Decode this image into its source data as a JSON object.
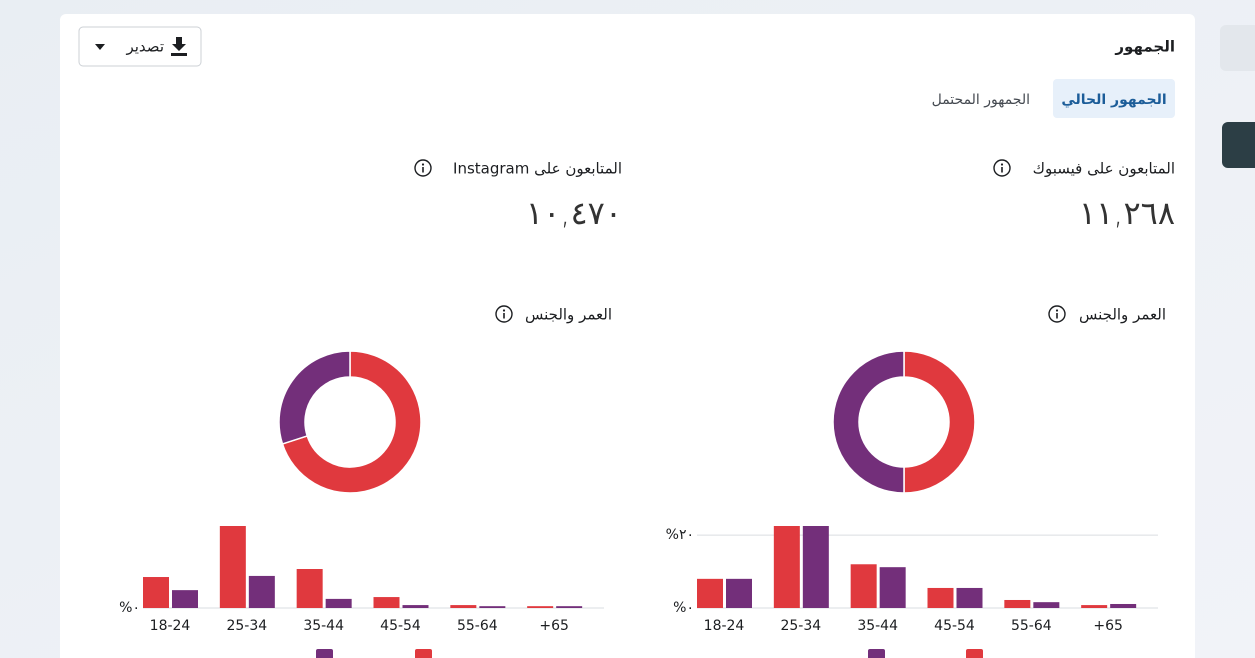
{
  "header": {
    "title": "الجمهور",
    "export_button": "تصدير"
  },
  "tabs": [
    "الجمهور الحالي",
    "الجمهور المحتمل"
  ],
  "panels": [
    {
      "label": "المتابعون على فيسبوك",
      "count": "١١,٢٦٨",
      "section_title": "العمر والجنس",
      "donut": {
        "type": "pie",
        "values": [
          50,
          50
        ],
        "colors": [
          "#e0393e",
          "#732f7a"
        ]
      },
      "bars": {
        "type": "bar",
        "categories": [
          "18-24",
          "25-34",
          "35-44",
          "45-54",
          "55-64",
          "+65"
        ],
        "series": [
          {
            "color": "#e0393e",
            "values": [
              8,
              22.5,
              12,
              5.5,
              2.2,
              0.8
            ]
          },
          {
            "color": "#732f7a",
            "values": [
              8,
              22.5,
              11.2,
              5.5,
              1.6,
              1.1
            ]
          }
        ],
        "ylim": [
          0,
          22.5
        ],
        "yticks": [
          {
            "value": 0,
            "label": "%٠"
          },
          {
            "value": 20,
            "label": "%٢٠"
          }
        ],
        "grid": true
      }
    },
    {
      "label": "المتابعون على Instagram",
      "count": "١٠,٤٧٠",
      "section_title": "العمر والجنس",
      "donut": {
        "type": "pie",
        "values": [
          70,
          30
        ],
        "colors": [
          "#e0393e",
          "#732f7a"
        ]
      },
      "bars": {
        "type": "bar",
        "categories": [
          "18-24",
          "25-34",
          "35-44",
          "45-54",
          "55-64",
          "+65"
        ],
        "series": [
          {
            "color": "#e0393e",
            "values": [
              8.5,
              22.5,
              10.7,
              3,
              0.8,
              0.5
            ]
          },
          {
            "color": "#732f7a",
            "values": [
              4.9,
              8.8,
              2.5,
              0.8,
              0.5,
              0.5
            ]
          }
        ],
        "ylim": [
          0,
          22.5
        ],
        "yticks": [
          {
            "value": 0,
            "label": "%٠"
          }
        ],
        "grid": true
      }
    }
  ]
}
